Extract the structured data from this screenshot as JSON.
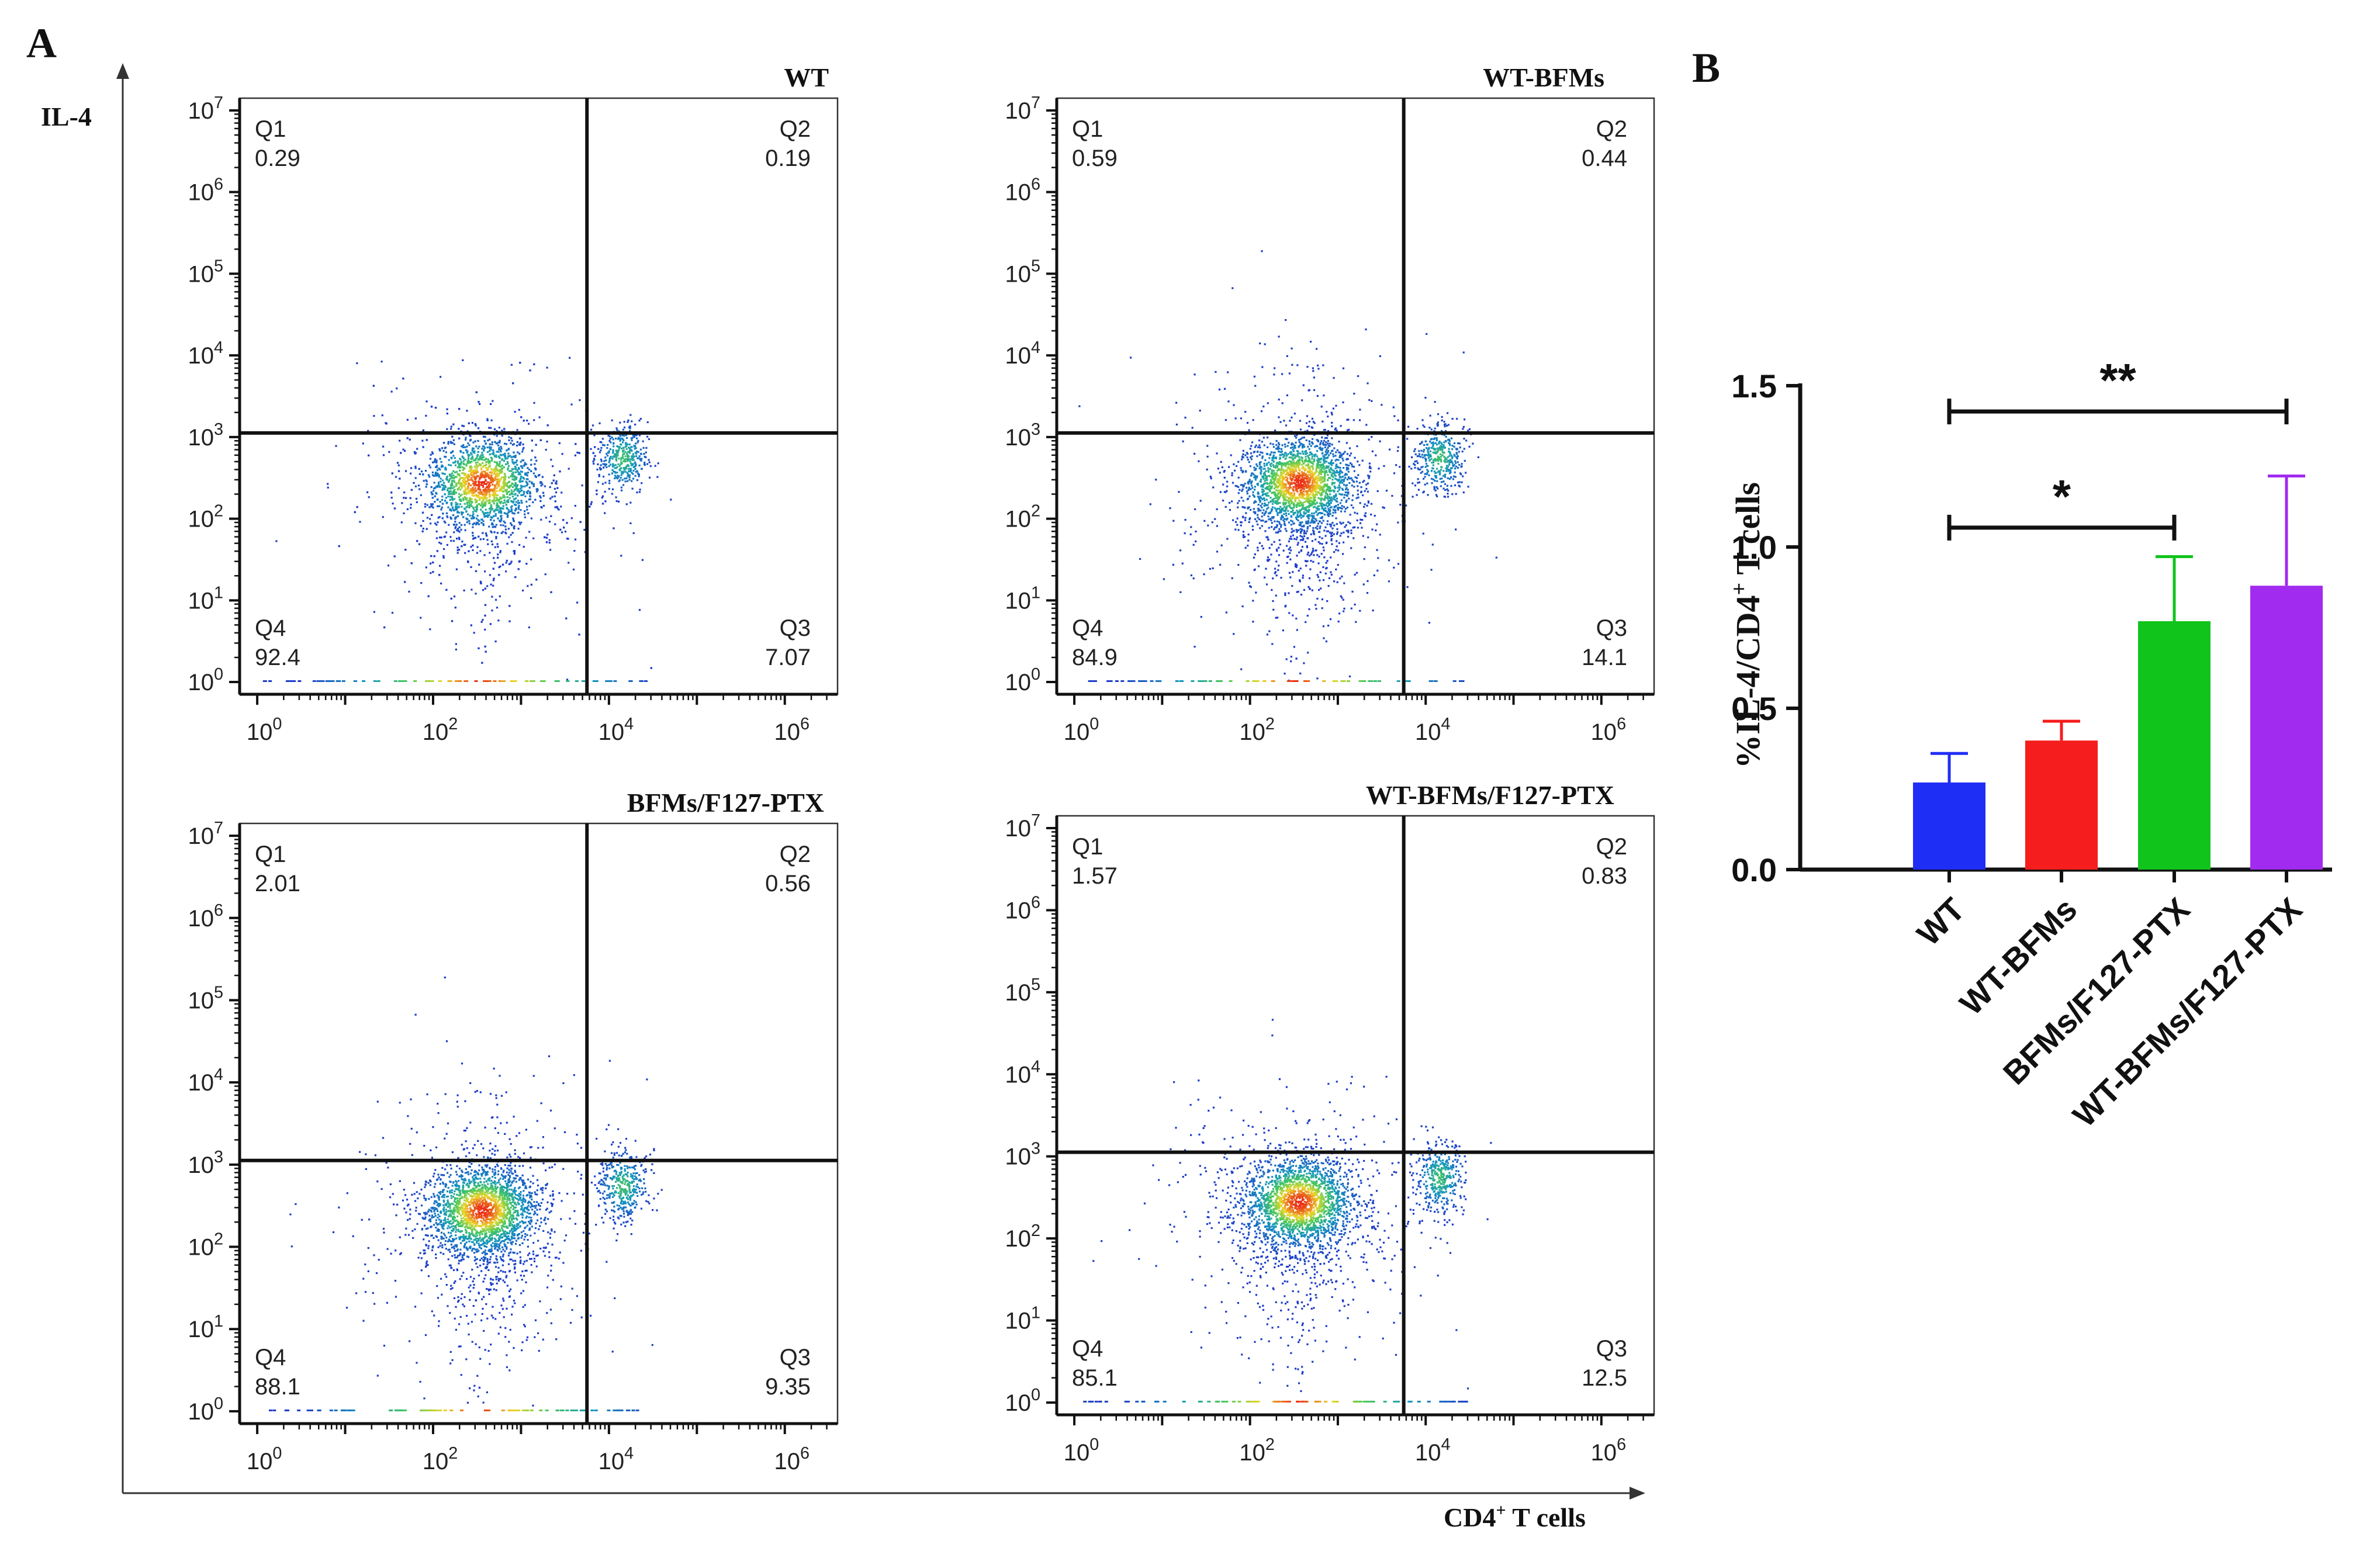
{
  "panel_labels": {
    "a": "A",
    "b": "B"
  },
  "panel_a": {
    "y_axis_label": "IL-4",
    "x_axis_label": "CD4",
    "x_axis_label_sup": "+",
    "x_axis_label_tail": " T cells"
  },
  "chart_data": [
    {
      "type": "scatter",
      "subtype": "flow-cytometry-quadrant-plot",
      "title": "WT",
      "x_scale": "log",
      "y_scale": "log",
      "xlim_exp": [
        -0.2,
        6.6
      ],
      "ylim_exp": [
        -0.15,
        7.15
      ],
      "x_tick_labels": [
        "10^0",
        "10^2",
        "10^4",
        "10^6"
      ],
      "y_tick_labels": [
        "10^0",
        "10^1",
        "10^2",
        "10^3",
        "10^4",
        "10^5",
        "10^6",
        "10^7"
      ],
      "gate_x_exp": 3.75,
      "gate_y_exp": 3.05,
      "quadrants": {
        "Q1": {
          "label": "Q1",
          "value": "0.29"
        },
        "Q2": {
          "label": "Q2",
          "value": "0.19"
        },
        "Q3": {
          "label": "Q3",
          "value": "7.07"
        },
        "Q4": {
          "label": "Q4",
          "value": "92.4"
        }
      }
    },
    {
      "type": "scatter",
      "subtype": "flow-cytometry-quadrant-plot",
      "title": "WT-BFMs",
      "x_scale": "log",
      "y_scale": "log",
      "xlim_exp": [
        -0.2,
        6.6
      ],
      "ylim_exp": [
        -0.15,
        7.15
      ],
      "x_tick_labels": [
        "10^0",
        "10^2",
        "10^4",
        "10^6"
      ],
      "y_tick_labels": [
        "10^0",
        "10^1",
        "10^2",
        "10^3",
        "10^4",
        "10^5",
        "10^6",
        "10^7"
      ],
      "gate_x_exp": 3.75,
      "gate_y_exp": 3.05,
      "quadrants": {
        "Q1": {
          "label": "Q1",
          "value": "0.59"
        },
        "Q2": {
          "label": "Q2",
          "value": "0.44"
        },
        "Q3": {
          "label": "Q3",
          "value": "14.1"
        },
        "Q4": {
          "label": "Q4",
          "value": "84.9"
        }
      }
    },
    {
      "type": "scatter",
      "subtype": "flow-cytometry-quadrant-plot",
      "title": "BFMs/F127-PTX",
      "x_scale": "log",
      "y_scale": "log",
      "xlim_exp": [
        -0.2,
        6.6
      ],
      "ylim_exp": [
        -0.15,
        7.15
      ],
      "x_tick_labels": [
        "10^0",
        "10^2",
        "10^4",
        "10^6"
      ],
      "y_tick_labels": [
        "10^0",
        "10^1",
        "10^2",
        "10^3",
        "10^4",
        "10^5",
        "10^6",
        "10^7"
      ],
      "gate_x_exp": 3.75,
      "gate_y_exp": 3.05,
      "quadrants": {
        "Q1": {
          "label": "Q1",
          "value": "2.01"
        },
        "Q2": {
          "label": "Q2",
          "value": "0.56"
        },
        "Q3": {
          "label": "Q3",
          "value": "9.35"
        },
        "Q4": {
          "label": "Q4",
          "value": "88.1"
        }
      }
    },
    {
      "type": "scatter",
      "subtype": "flow-cytometry-quadrant-plot",
      "title": "WT-BFMs/F127-PTX",
      "x_scale": "log",
      "y_scale": "log",
      "xlim_exp": [
        -0.2,
        6.6
      ],
      "ylim_exp": [
        -0.15,
        7.15
      ],
      "x_tick_labels": [
        "10^0",
        "10^2",
        "10^4",
        "10^6"
      ],
      "y_tick_labels": [
        "10^0",
        "10^1",
        "10^2",
        "10^3",
        "10^4",
        "10^5",
        "10^6",
        "10^7"
      ],
      "gate_x_exp": 3.75,
      "gate_y_exp": 3.05,
      "quadrants": {
        "Q1": {
          "label": "Q1",
          "value": "1.57"
        },
        "Q2": {
          "label": "Q2",
          "value": "0.83"
        },
        "Q3": {
          "label": "Q3",
          "value": "12.5"
        },
        "Q4": {
          "label": "Q4",
          "value": "85.1"
        }
      }
    },
    {
      "type": "bar",
      "title": "",
      "categories": [
        "WT",
        "WT-BFMs",
        "BFMs/F127-PTX",
        "WT-BFMs/F127-PTX"
      ],
      "values": [
        0.27,
        0.4,
        0.77,
        0.88
      ],
      "errors": [
        0.09,
        0.06,
        0.2,
        0.34
      ],
      "colors": [
        "#1f2ef5",
        "#f51d1d",
        "#11c41c",
        "#a12bef"
      ],
      "ylabel": "%IL-4/CD4",
      "ylabel_sup": "+",
      "ylabel_tail": " T cells",
      "ylim": [
        0,
        1.5
      ],
      "yticks": [
        0,
        0.5,
        1.0,
        1.5
      ],
      "ytick_labels": [
        "0.0",
        "0.5",
        "1.0",
        "1.5"
      ],
      "significance": [
        {
          "from": "WT",
          "to": "WT-BFMs/F127-PTX",
          "label": "**"
        },
        {
          "from": "WT",
          "to": "BFMs/F127-PTX",
          "label": "*"
        }
      ]
    }
  ]
}
